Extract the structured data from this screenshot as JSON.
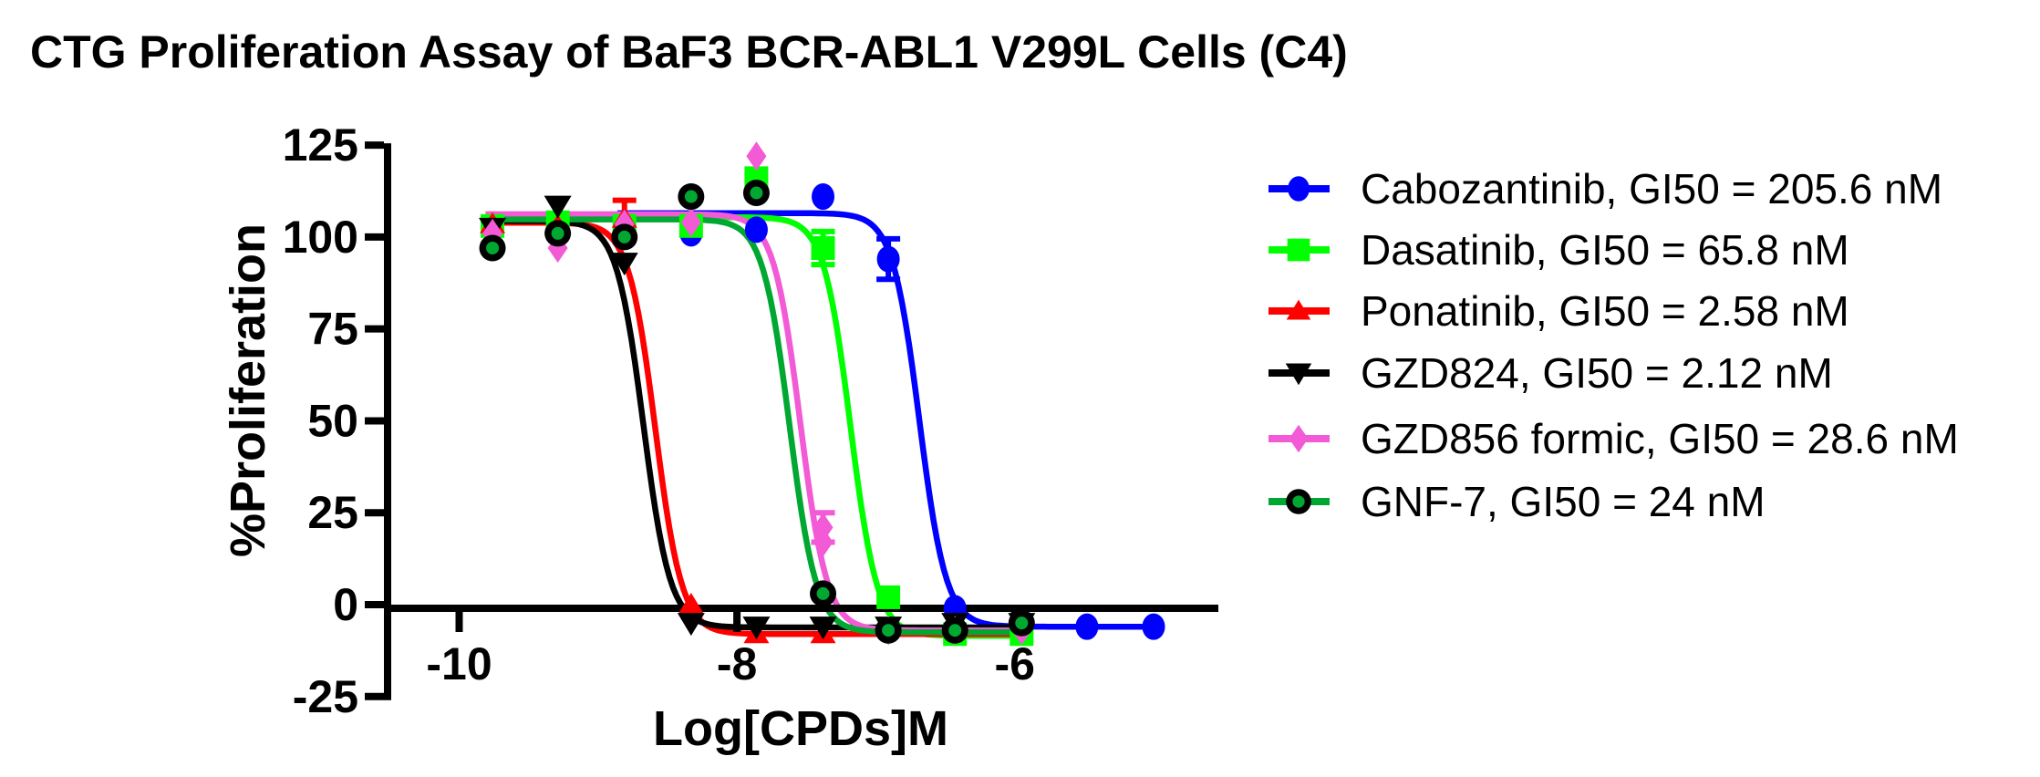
{
  "figure": {
    "title": "CTG Proliferation Assay of BaF3 BCR-ABL1 V299L Cells (C4)"
  },
  "chart_data": {
    "type": "scatter",
    "subtype": "dose-response curves with 4PL sigmoidal fits",
    "title": "CTG Proliferation Assay of BaF3 BCR-ABL1 V299L Cells (C4)",
    "xlabel": "Log[CPDs]M",
    "ylabel": "%Proliferation",
    "xlim": [
      -10.52,
      -4.55
    ],
    "ylim": [
      -25,
      125
    ],
    "xticks": [
      -10,
      -8,
      -6
    ],
    "yticks": [
      -25,
      0,
      25,
      50,
      75,
      100,
      125
    ],
    "grid": false,
    "legend_position": "right-outside",
    "axis_color": "#000000",
    "series": [
      {
        "name": "Cabozantinib, GI50 = 205.6 nM",
        "drug": "Cabozantinib",
        "gi50_nM": 205.6,
        "color": "#0000FF",
        "marker": "circle",
        "points": [
          {
            "x": -8.81,
            "y": 102
          },
          {
            "x": -8.33,
            "y": 101
          },
          {
            "x": -7.86,
            "y": 102
          },
          {
            "x": -7.38,
            "y": 111
          },
          {
            "x": -6.91,
            "y": 94,
            "err": 5.5
          },
          {
            "x": -6.43,
            "y": -1
          },
          {
            "x": -5.95,
            "y": -5
          },
          {
            "x": -5.48,
            "y": -6
          },
          {
            "x": -5.0,
            "y": -6
          }
        ],
        "fit": {
          "top": 106.5,
          "bottom": -6,
          "logec50": -6.687,
          "hill": 4.5,
          "x_start": -8.86,
          "x_end": -4.92
        }
      },
      {
        "name": "Dasatinib, GI50 = 65.8 nM",
        "drug": "Dasatinib",
        "gi50_nM": 65.8,
        "color": "#00FF00",
        "marker": "square",
        "points": [
          {
            "x": -9.76,
            "y": 103
          },
          {
            "x": -9.29,
            "y": 104
          },
          {
            "x": -8.81,
            "y": 103
          },
          {
            "x": -8.33,
            "y": 103
          },
          {
            "x": -7.86,
            "y": 116
          },
          {
            "x": -7.38,
            "y": 97,
            "err": 4.5
          },
          {
            "x": -6.91,
            "y": 2
          },
          {
            "x": -6.43,
            "y": -8
          },
          {
            "x": -5.95,
            "y": -8
          }
        ],
        "fit": {
          "top": 105.4,
          "bottom": -8.5,
          "logec50": -7.182,
          "hill": 4.5,
          "x_start": -9.81,
          "x_end": -5.9
        }
      },
      {
        "name": "Ponatinib, GI50 = 2.58 nM",
        "drug": "Ponatinib",
        "gi50_nM": 2.58,
        "color": "#FF0000",
        "marker": "triangle-up",
        "points": [
          {
            "x": -9.76,
            "y": 103.5
          },
          {
            "x": -9.29,
            "y": 103
          },
          {
            "x": -8.81,
            "y": 105,
            "err": 5
          },
          {
            "x": -8.33,
            "y": 0
          },
          {
            "x": -7.86,
            "y": -8
          },
          {
            "x": -7.38,
            "y": -8
          }
        ],
        "fit": {
          "top": 103.9,
          "bottom": -8,
          "logec50": -8.588,
          "hill": 4.5,
          "x_start": -9.81,
          "x_end": -5.95
        }
      },
      {
        "name": "GZD824, GI50 = 2.12 nM",
        "drug": "GZD824",
        "gi50_nM": 2.12,
        "color": "#000000",
        "marker": "triangle-down",
        "points": [
          {
            "x": -9.76,
            "y": 102.5
          },
          {
            "x": -9.29,
            "y": 108.5
          },
          {
            "x": -8.81,
            "y": 93
          },
          {
            "x": -8.33,
            "y": -5
          },
          {
            "x": -7.86,
            "y": -6
          },
          {
            "x": -7.38,
            "y": -6
          },
          {
            "x": -6.91,
            "y": -6
          },
          {
            "x": -6.43,
            "y": -5
          },
          {
            "x": -5.95,
            "y": -5
          }
        ],
        "fit": {
          "top": 104.4,
          "bottom": -6.2,
          "logec50": -8.674,
          "hill": 4.5,
          "x_start": -9.81,
          "x_end": -5.9
        }
      },
      {
        "name": "GZD856 formic, GI50 = 28.6 nM",
        "drug": "GZD856 formic",
        "gi50_nM": 28.6,
        "color": "#F25AD6",
        "marker": "diamond",
        "points": [
          {
            "x": -9.76,
            "y": 101
          },
          {
            "x": -9.29,
            "y": 97
          },
          {
            "x": -8.81,
            "y": 103.5
          },
          {
            "x": -8.33,
            "y": 104
          },
          {
            "x": -7.86,
            "y": 122
          },
          {
            "x": -7.38,
            "y": 21,
            "err": 4
          },
          {
            "x": -7.38,
            "y": 17
          },
          {
            "x": -6.91,
            "y": -7
          },
          {
            "x": -6.43,
            "y": -7
          },
          {
            "x": -5.95,
            "y": -7
          }
        ],
        "fit": {
          "top": 106.2,
          "bottom": -7,
          "logec50": -7.544,
          "hill": 4.5,
          "x_start": -9.81,
          "x_end": -5.92
        }
      },
      {
        "name": "GNF-7, GI50 = 24 nM",
        "drug": "GNF-7",
        "gi50_nM": 24,
        "color": "#00A832",
        "ring_color": "#000000",
        "marker": "circle-ringed",
        "points": [
          {
            "x": -9.76,
            "y": 97
          },
          {
            "x": -9.29,
            "y": 101
          },
          {
            "x": -8.81,
            "y": 100
          },
          {
            "x": -8.33,
            "y": 111
          },
          {
            "x": -7.86,
            "y": 112
          },
          {
            "x": -7.38,
            "y": 3
          },
          {
            "x": -6.91,
            "y": -7
          },
          {
            "x": -6.43,
            "y": -7
          },
          {
            "x": -5.95,
            "y": -5
          }
        ],
        "fit": {
          "top": 104.8,
          "bottom": -7.5,
          "logec50": -7.621,
          "hill": 4.5,
          "x_start": -9.81,
          "x_end": -5.9
        }
      }
    ]
  }
}
